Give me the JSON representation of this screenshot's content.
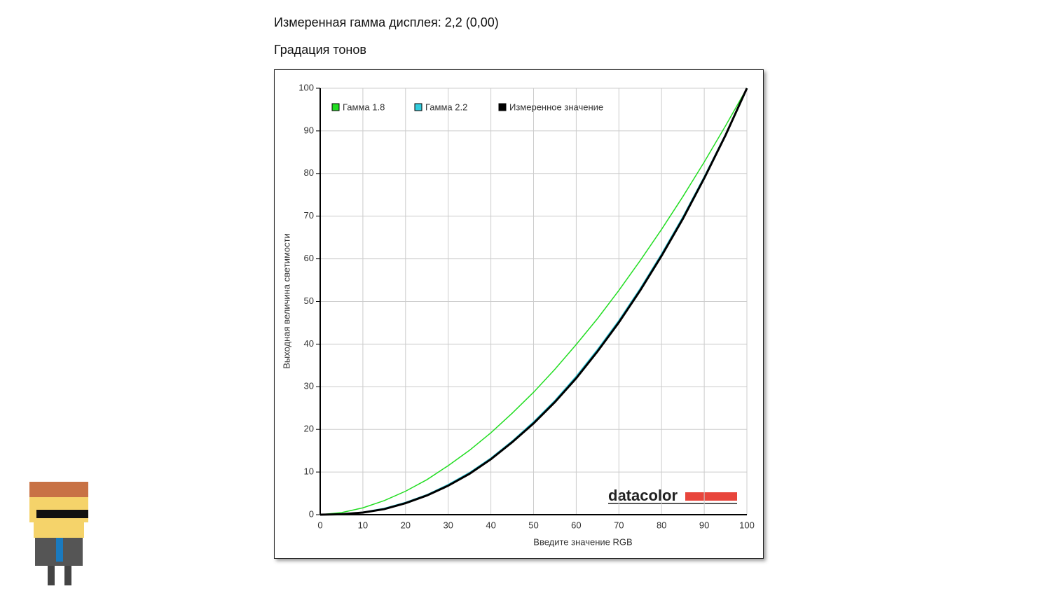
{
  "header": {
    "gamma": "Измеренная гамма дисплея: 2,2 (0,00)",
    "section": "Градация тонов"
  },
  "chart_data": {
    "type": "line",
    "x_label": "Введите значение RGB",
    "y_label": "Выходная величина светимости",
    "logo": "datacolor",
    "x": [
      0,
      5,
      10,
      15,
      20,
      25,
      30,
      35,
      40,
      45,
      50,
      55,
      60,
      65,
      70,
      75,
      80,
      85,
      90,
      95,
      100
    ],
    "series": [
      {
        "name": "Гамма 1.8",
        "color": "#22dd22",
        "values": [
          0,
          0.5,
          1.6,
          3.3,
          5.5,
          8.2,
          11.5,
          15.1,
          19.2,
          23.8,
          28.7,
          34.1,
          39.9,
          46.0,
          52.6,
          59.6,
          66.9,
          74.6,
          82.7,
          91.2,
          100
        ]
      },
      {
        "name": "Гамма 2.2",
        "color": "#33ccdd",
        "values": [
          0,
          0.1,
          0.6,
          1.5,
          2.9,
          4.7,
          7.1,
          9.9,
          13.3,
          17.3,
          21.8,
          26.8,
          32.5,
          38.8,
          45.6,
          53.1,
          61.2,
          69.9,
          79.3,
          89.3,
          100
        ]
      },
      {
        "name": "Измеренное значение",
        "color": "#000000",
        "values": [
          0,
          0.1,
          0.5,
          1.3,
          2.7,
          4.5,
          6.8,
          9.6,
          13.0,
          17.0,
          21.4,
          26.4,
          32.0,
          38.3,
          45.1,
          52.6,
          60.7,
          69.4,
          78.9,
          89.0,
          100
        ]
      }
    ],
    "xlim": [
      0,
      100
    ],
    "ylim": [
      0,
      100
    ],
    "xticks": [
      0,
      10,
      20,
      30,
      40,
      50,
      60,
      70,
      80,
      90,
      100
    ],
    "yticks": [
      0,
      10,
      20,
      30,
      40,
      50,
      60,
      70,
      80,
      90,
      100
    ],
    "grid": true,
    "legend": "top"
  }
}
